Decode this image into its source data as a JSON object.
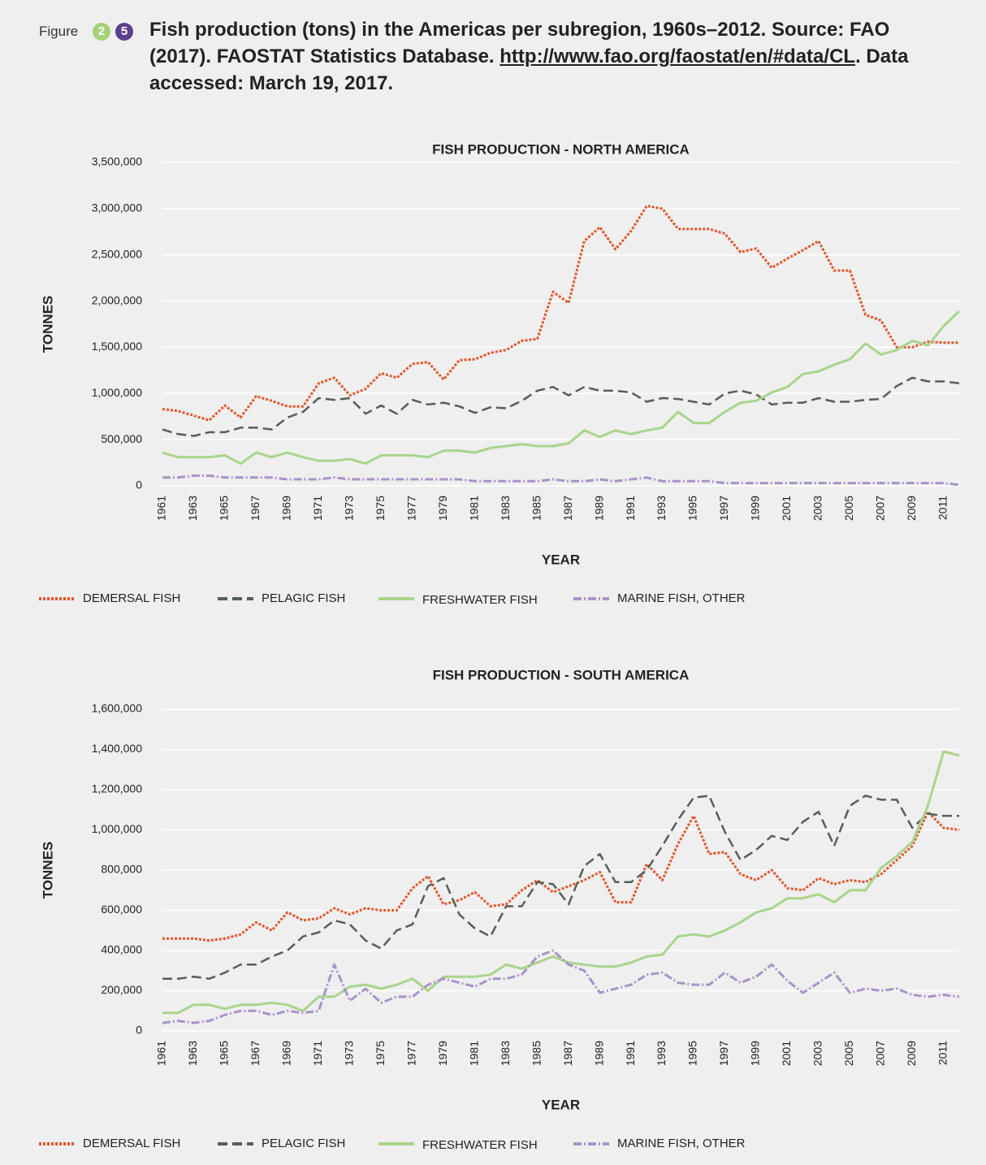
{
  "figure_label": "Figure",
  "figure_chapter": "2",
  "figure_number": "5",
  "caption_text": "Fish production (tons) in the Americas per subregion, 1960s–2012. Source: FAO (2017). FAOSTAT Statistics Database.",
  "caption_link": "http://www.fao.org/faostat/en/#data/CL",
  "caption_after": ". Data accessed: March 19, 2017.",
  "chart_data": [
    {
      "type": "line",
      "title": "FISH PRODUCTION - NORTH AMERICA",
      "y_label": "TONNES",
      "x_label": "YEAR",
      "grid": true,
      "categories": [
        "1961",
        null,
        "1963",
        null,
        "1965",
        null,
        "1967",
        null,
        "1969",
        null,
        "1971",
        null,
        "1973",
        null,
        "1975",
        null,
        "1977",
        null,
        "1979",
        null,
        "1981",
        null,
        "1983",
        null,
        "1985",
        null,
        "1987",
        null,
        "1989",
        null,
        "1991",
        null,
        "1993",
        null,
        "1995",
        null,
        "1997",
        null,
        "1999",
        null,
        "2001",
        null,
        "2003",
        null,
        "2005",
        null,
        "2007",
        null,
        "2009",
        null,
        "2011",
        null
      ],
      "ylim": [
        0,
        3500000
      ],
      "yticks": [
        0,
        {
          "value": 500000,
          "label": "500,000"
        },
        {
          "value": 1000000,
          "label": "1,000,000"
        },
        {
          "value": 1500000,
          "label": "1,500,000"
        },
        {
          "value": 2000000,
          "label": "2,000,000"
        },
        {
          "value": 2500000,
          "label": "2,500,000"
        },
        {
          "value": 3000000,
          "label": "3,000,000"
        },
        {
          "value": 3500000,
          "label": "3,500,000"
        }
      ],
      "series": [
        {
          "name": "DEMERSAL FISH",
          "color": "#e0562a",
          "line_style": "dotted",
          "values": [
            830000,
            810000,
            760000,
            710000,
            870000,
            740000,
            970000,
            920000,
            860000,
            860000,
            1110000,
            1170000,
            980000,
            1050000,
            1220000,
            1170000,
            1320000,
            1340000,
            1150000,
            1360000,
            1370000,
            1440000,
            1470000,
            1570000,
            1590000,
            2100000,
            1980000,
            2650000,
            2800000,
            2560000,
            2760000,
            3030000,
            3000000,
            2780000,
            2780000,
            2780000,
            2730000,
            2530000,
            2570000,
            2360000,
            2460000,
            2550000,
            2650000,
            2330000,
            2330000,
            1850000,
            1790000,
            1500000,
            1500000,
            1560000,
            1550000,
            1550000
          ]
        },
        {
          "name": "PELAGIC FISH",
          "color": "#555f58",
          "line_style": "dashed",
          "values": [
            610000,
            560000,
            540000,
            580000,
            580000,
            630000,
            630000,
            610000,
            740000,
            800000,
            950000,
            930000,
            950000,
            780000,
            870000,
            780000,
            930000,
            880000,
            900000,
            860000,
            790000,
            850000,
            840000,
            920000,
            1030000,
            1070000,
            980000,
            1070000,
            1030000,
            1030000,
            1010000,
            910000,
            950000,
            940000,
            910000,
            880000,
            1000000,
            1030000,
            990000,
            880000,
            900000,
            900000,
            950000,
            910000,
            910000,
            930000,
            940000,
            1080000,
            1170000,
            1130000,
            1130000,
            1110000
          ]
        },
        {
          "name": "FRESHWATER FISH",
          "color": "#a8d58a",
          "line_style": "solid",
          "values": [
            360000,
            310000,
            310000,
            310000,
            330000,
            240000,
            360000,
            310000,
            360000,
            310000,
            270000,
            270000,
            290000,
            240000,
            330000,
            330000,
            330000,
            310000,
            380000,
            380000,
            360000,
            410000,
            430000,
            450000,
            430000,
            430000,
            460000,
            600000,
            530000,
            600000,
            560000,
            600000,
            630000,
            800000,
            680000,
            680000,
            800000,
            900000,
            920000,
            1010000,
            1070000,
            1210000,
            1240000,
            1310000,
            1370000,
            1540000,
            1420000,
            1470000,
            1570000,
            1520000,
            1730000,
            1890000
          ]
        },
        {
          "name": "MARINE FISH, OTHER",
          "color": "#a992c9",
          "line_style": "dashdot",
          "values": [
            90000,
            90000,
            110000,
            110000,
            90000,
            90000,
            90000,
            90000,
            70000,
            70000,
            70000,
            90000,
            70000,
            70000,
            70000,
            70000,
            70000,
            70000,
            70000,
            70000,
            50000,
            50000,
            50000,
            50000,
            50000,
            70000,
            50000,
            50000,
            70000,
            50000,
            70000,
            90000,
            50000,
            50000,
            50000,
            50000,
            30000,
            30000,
            30000,
            30000,
            30000,
            30000,
            30000,
            30000,
            30000,
            30000,
            30000,
            30000,
            30000,
            30000,
            30000,
            10000
          ]
        }
      ]
    },
    {
      "type": "line",
      "title": "FISH PRODUCTION - SOUTH AMERICA",
      "y_label": "TONNES",
      "x_label": "YEAR",
      "grid": true,
      "categories": [
        "1961",
        null,
        "1963",
        null,
        "1965",
        null,
        "1967",
        null,
        "1969",
        null,
        "1971",
        null,
        "1973",
        null,
        "1975",
        null,
        "1977",
        null,
        "1979",
        null,
        "1981",
        null,
        "1983",
        null,
        "1985",
        null,
        "1987",
        null,
        "1989",
        null,
        "1991",
        null,
        "1993",
        null,
        "1995",
        null,
        "1997",
        null,
        "1999",
        null,
        "2001",
        null,
        "2003",
        null,
        "2005",
        null,
        "2007",
        null,
        "2009",
        null,
        "2011",
        null
      ],
      "ylim": [
        0,
        1600000
      ],
      "yticks": [
        0,
        {
          "value": 200000,
          "label": "200,000"
        },
        {
          "value": 400000,
          "label": "400,000"
        },
        {
          "value": 600000,
          "label": "600,000"
        },
        {
          "value": 800000,
          "label": "800,000"
        },
        {
          "value": 1000000,
          "label": "1,000,000"
        },
        {
          "value": 1200000,
          "label": "1,200,000"
        },
        {
          "value": 1400000,
          "label": "1,400,000"
        },
        {
          "value": 1600000,
          "label": "1,600,000"
        }
      ],
      "series": [
        {
          "name": "DEMERSAL FISH",
          "color": "#e0562a",
          "line_style": "dotted",
          "values": [
            460000,
            460000,
            460000,
            450000,
            460000,
            480000,
            540000,
            500000,
            590000,
            550000,
            560000,
            610000,
            580000,
            610000,
            600000,
            600000,
            710000,
            770000,
            630000,
            650000,
            690000,
            620000,
            630000,
            700000,
            750000,
            690000,
            720000,
            750000,
            790000,
            640000,
            640000,
            830000,
            750000,
            930000,
            1070000,
            880000,
            890000,
            780000,
            750000,
            800000,
            710000,
            700000,
            760000,
            730000,
            750000,
            740000,
            780000,
            850000,
            920000,
            1090000,
            1010000,
            1000000
          ]
        },
        {
          "name": "PELAGIC FISH",
          "color": "#555f58",
          "line_style": "dashed",
          "values": [
            260000,
            260000,
            270000,
            260000,
            290000,
            330000,
            330000,
            370000,
            400000,
            470000,
            490000,
            550000,
            530000,
            450000,
            410000,
            500000,
            530000,
            720000,
            760000,
            580000,
            510000,
            470000,
            620000,
            620000,
            740000,
            730000,
            630000,
            820000,
            880000,
            740000,
            740000,
            800000,
            920000,
            1050000,
            1160000,
            1170000,
            990000,
            850000,
            900000,
            970000,
            950000,
            1040000,
            1090000,
            920000,
            1120000,
            1170000,
            1150000,
            1150000,
            1010000,
            1080000,
            1070000,
            1070000
          ]
        },
        {
          "name": "FRESHWATER FISH",
          "color": "#a8d58a",
          "line_style": "solid",
          "values": [
            90000,
            90000,
            130000,
            130000,
            110000,
            130000,
            130000,
            140000,
            130000,
            100000,
            170000,
            170000,
            220000,
            230000,
            210000,
            230000,
            260000,
            200000,
            270000,
            270000,
            270000,
            280000,
            330000,
            310000,
            340000,
            370000,
            340000,
            330000,
            320000,
            320000,
            340000,
            370000,
            380000,
            470000,
            480000,
            470000,
            500000,
            540000,
            590000,
            610000,
            660000,
            660000,
            680000,
            640000,
            700000,
            700000,
            810000,
            870000,
            940000,
            1120000,
            1390000,
            1370000
          ]
        },
        {
          "name": "MARINE FISH, OTHER",
          "color": "#a992c9",
          "line_style": "dashdot",
          "values": [
            40000,
            50000,
            40000,
            50000,
            80000,
            100000,
            100000,
            80000,
            100000,
            90000,
            100000,
            330000,
            150000,
            210000,
            140000,
            170000,
            170000,
            230000,
            260000,
            240000,
            220000,
            260000,
            260000,
            280000,
            370000,
            400000,
            330000,
            300000,
            190000,
            210000,
            230000,
            280000,
            290000,
            240000,
            230000,
            230000,
            290000,
            240000,
            270000,
            330000,
            250000,
            190000,
            240000,
            290000,
            190000,
            210000,
            200000,
            210000,
            180000,
            170000,
            180000,
            170000
          ]
        }
      ]
    }
  ]
}
